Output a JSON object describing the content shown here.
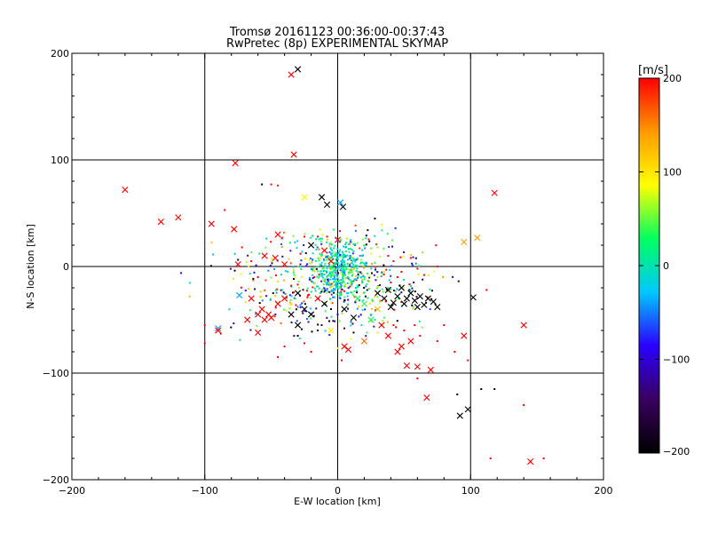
{
  "chart_data": {
    "type": "scatter",
    "title": "Tromsø 20161123 00:36:00-00:37:43",
    "subtitle": "RwPretec (8p) EXPERIMENTAL SKYMAP",
    "xlabel": "E-W location [km]",
    "ylabel": "N-S location [km]",
    "xlim": [
      -200,
      200
    ],
    "ylim": [
      -200,
      200
    ],
    "xticks": [
      -200,
      -100,
      0,
      100,
      200
    ],
    "yticks": [
      -200,
      -100,
      0,
      100,
      200
    ],
    "xtick_labels": [
      "−200",
      "−100",
      "0",
      "100",
      "200"
    ],
    "ytick_labels": [
      "−200",
      "−100",
      "0",
      "100",
      "200"
    ],
    "grid": true,
    "colorbar": {
      "label": "[m/s]",
      "range": [
        -200,
        200
      ],
      "ticks": [
        200,
        100,
        0,
        -100,
        -200
      ],
      "tick_labels": [
        "200",
        "100",
        "0",
        "−100",
        "−200"
      ],
      "colors": [
        "#000000",
        "#3a0060",
        "#2a00ff",
        "#00c8ff",
        "#00ff60",
        "#ffff00",
        "#ff9a00",
        "#ff0000"
      ]
    },
    "series": [
      {
        "name": "large crosses",
        "marker": "x",
        "points": [
          {
            "x": -30,
            "y": 185,
            "v": -200
          },
          {
            "x": -35,
            "y": 180,
            "v": 200
          },
          {
            "x": -33,
            "y": 105,
            "v": 200
          },
          {
            "x": -160,
            "y": 72,
            "v": 200
          },
          {
            "x": -133,
            "y": 42,
            "v": 200
          },
          {
            "x": -120,
            "y": 46,
            "v": 200
          },
          {
            "x": -95,
            "y": 40,
            "v": 200
          },
          {
            "x": -77,
            "y": 97,
            "v": 200
          },
          {
            "x": -25,
            "y": 65,
            "v": 90
          },
          {
            "x": -12,
            "y": 65,
            "v": -200
          },
          {
            "x": -8,
            "y": 58,
            "v": -200
          },
          {
            "x": 2,
            "y": 60,
            "v": -40
          },
          {
            "x": 4,
            "y": 56,
            "v": -200
          },
          {
            "x": 95,
            "y": 23,
            "v": 140
          },
          {
            "x": 105,
            "y": 27,
            "v": 140
          },
          {
            "x": 118,
            "y": 69,
            "v": 200
          },
          {
            "x": 102,
            "y": -29,
            "v": -200
          },
          {
            "x": 140,
            "y": -55,
            "v": 200
          },
          {
            "x": 95,
            "y": -65,
            "v": 200
          },
          {
            "x": 92,
            "y": -140,
            "v": -200
          },
          {
            "x": 98,
            "y": -134,
            "v": -200
          },
          {
            "x": 145,
            "y": -183,
            "v": 200
          },
          {
            "x": 67,
            "y": -123,
            "v": 200
          },
          {
            "x": 70,
            "y": -97,
            "v": 200
          },
          {
            "x": 60,
            "y": -94,
            "v": 200
          },
          {
            "x": 52,
            "y": -93,
            "v": 200
          },
          {
            "x": -90,
            "y": -58,
            "v": -40
          },
          {
            "x": -74,
            "y": -27,
            "v": -40
          },
          {
            "x": -75,
            "y": 2,
            "v": 200
          },
          {
            "x": -78,
            "y": 35,
            "v": 200
          },
          {
            "x": -55,
            "y": 10,
            "v": 200
          },
          {
            "x": -47,
            "y": 8,
            "v": 200
          },
          {
            "x": -40,
            "y": 2,
            "v": 200
          },
          {
            "x": -45,
            "y": 30,
            "v": 200
          },
          {
            "x": -20,
            "y": 20,
            "v": -200
          },
          {
            "x": -10,
            "y": 15,
            "v": 200
          },
          {
            "x": 0,
            "y": 25,
            "v": 200
          },
          {
            "x": -5,
            "y": 5,
            "v": 200
          },
          {
            "x": 10,
            "y": -5,
            "v": 60
          },
          {
            "x": 15,
            "y": -30,
            "v": 30
          },
          {
            "x": 20,
            "y": -35,
            "v": 40
          },
          {
            "x": 25,
            "y": -50,
            "v": 30
          },
          {
            "x": 30,
            "y": -40,
            "v": 120
          },
          {
            "x": 20,
            "y": -70,
            "v": 160
          },
          {
            "x": -15,
            "y": -30,
            "v": 200
          },
          {
            "x": -30,
            "y": -25,
            "v": -200
          },
          {
            "x": -25,
            "y": -40,
            "v": -200
          },
          {
            "x": -10,
            "y": -35,
            "v": -200
          },
          {
            "x": 5,
            "y": -40,
            "v": -200
          },
          {
            "x": 12,
            "y": -48,
            "v": -200
          },
          {
            "x": 30,
            "y": -25,
            "v": -200
          },
          {
            "x": 35,
            "y": -30,
            "v": -200
          },
          {
            "x": 38,
            "y": -22,
            "v": -200
          },
          {
            "x": 42,
            "y": -34,
            "v": -200
          },
          {
            "x": 45,
            "y": -28,
            "v": -200
          },
          {
            "x": 48,
            "y": -20,
            "v": -200
          },
          {
            "x": 50,
            "y": -35,
            "v": -200
          },
          {
            "x": 55,
            "y": -25,
            "v": -200
          },
          {
            "x": 58,
            "y": -32,
            "v": -200
          },
          {
            "x": 62,
            "y": -28,
            "v": -200
          },
          {
            "x": 65,
            "y": -36,
            "v": -200
          },
          {
            "x": 68,
            "y": -30,
            "v": -200
          },
          {
            "x": 72,
            "y": -33,
            "v": -200
          },
          {
            "x": 75,
            "y": -38,
            "v": -200
          },
          {
            "x": 40,
            "y": -38,
            "v": -200
          },
          {
            "x": 52,
            "y": -30,
            "v": -200
          },
          {
            "x": 60,
            "y": -38,
            "v": -200
          },
          {
            "x": -60,
            "y": -45,
            "v": 200
          },
          {
            "x": -55,
            "y": -50,
            "v": 200
          },
          {
            "x": -52,
            "y": -45,
            "v": 200
          },
          {
            "x": -57,
            "y": -40,
            "v": 200
          },
          {
            "x": -50,
            "y": -48,
            "v": 200
          },
          {
            "x": -65,
            "y": -30,
            "v": 200
          },
          {
            "x": -60,
            "y": -62,
            "v": 200
          },
          {
            "x": -68,
            "y": -50,
            "v": 200
          },
          {
            "x": -45,
            "y": -35,
            "v": 200
          },
          {
            "x": -40,
            "y": -30,
            "v": 200
          },
          {
            "x": -35,
            "y": -45,
            "v": -200
          },
          {
            "x": -30,
            "y": -55,
            "v": -200
          },
          {
            "x": -20,
            "y": -45,
            "v": -200
          },
          {
            "x": 38,
            "y": -65,
            "v": 200
          },
          {
            "x": 45,
            "y": -80,
            "v": 200
          },
          {
            "x": 55,
            "y": -70,
            "v": 200
          },
          {
            "x": 48,
            "y": -75,
            "v": 200
          },
          {
            "x": 33,
            "y": -55,
            "v": 200
          },
          {
            "x": -90,
            "y": -60,
            "v": 200
          },
          {
            "x": 5,
            "y": -75,
            "v": 200
          },
          {
            "x": 8,
            "y": -78,
            "v": 200
          },
          {
            "x": -5,
            "y": -60,
            "v": 100
          }
        ]
      },
      {
        "name": "small dots",
        "marker": "dot",
        "points": [
          {
            "x": -57,
            "y": 77,
            "v": -200
          },
          {
            "x": -50,
            "y": 77,
            "v": 200
          },
          {
            "x": -45,
            "y": 76,
            "v": 200
          },
          {
            "x": -85,
            "y": 53,
            "v": 200
          },
          {
            "x": 28,
            "y": 45,
            "v": -200
          },
          {
            "x": 75,
            "y": 0,
            "v": 200
          },
          {
            "x": 112,
            "y": -22,
            "v": 200
          },
          {
            "x": 88,
            "y": -80,
            "v": 200
          },
          {
            "x": 98,
            "y": -88,
            "v": 200
          },
          {
            "x": 108,
            "y": -115,
            "v": -200
          },
          {
            "x": 118,
            "y": -115,
            "v": -200
          },
          {
            "x": 90,
            "y": -120,
            "v": -200
          },
          {
            "x": 140,
            "y": -130,
            "v": 200
          },
          {
            "x": 115,
            "y": -180,
            "v": 200
          },
          {
            "x": 155,
            "y": -180,
            "v": 200
          },
          {
            "x": -100,
            "y": -55,
            "v": 200
          },
          {
            "x": -100,
            "y": -72,
            "v": 200
          },
          {
            "x": -88,
            "y": -63,
            "v": 200
          },
          {
            "x": -45,
            "y": -85,
            "v": 200
          },
          {
            "x": -40,
            "y": -75,
            "v": 200
          },
          {
            "x": -25,
            "y": -72,
            "v": 200
          },
          {
            "x": -30,
            "y": -65,
            "v": -200
          },
          {
            "x": -15,
            "y": -60,
            "v": -200
          },
          {
            "x": -35,
            "y": -18,
            "v": 200
          },
          {
            "x": 3,
            "y": -88,
            "v": 200
          },
          {
            "x": 12,
            "y": -62,
            "v": -200
          },
          {
            "x": 30,
            "y": -62,
            "v": 100
          },
          {
            "x": -20,
            "y": -80,
            "v": 200
          },
          {
            "x": 60,
            "y": -105,
            "v": 200
          },
          {
            "x": 80,
            "y": -55,
            "v": 200
          },
          {
            "x": 75,
            "y": -70,
            "v": 200
          },
          {
            "x": -72,
            "y": 18,
            "v": 200
          },
          {
            "x": -60,
            "y": -10,
            "v": 200
          },
          {
            "x": -65,
            "y": 5,
            "v": 200
          },
          {
            "x": -28,
            "y": 12,
            "v": 200
          },
          {
            "x": -25,
            "y": 28,
            "v": 200
          },
          {
            "x": -8,
            "y": 28,
            "v": 200
          },
          {
            "x": -15,
            "y": 28,
            "v": 200
          },
          {
            "x": 15,
            "y": 22,
            "v": 60
          },
          {
            "x": 20,
            "y": 20,
            "v": 40
          },
          {
            "x": 25,
            "y": 12,
            "v": 80
          },
          {
            "x": 30,
            "y": 18,
            "v": 60
          },
          {
            "x": 38,
            "y": 10,
            "v": 200
          },
          {
            "x": 42,
            "y": 5,
            "v": 200
          },
          {
            "x": 55,
            "y": 8,
            "v": 200
          },
          {
            "x": 48,
            "y": -5,
            "v": 200
          },
          {
            "x": 60,
            "y": -2,
            "v": 200
          },
          {
            "x": 65,
            "y": -8,
            "v": 200
          },
          {
            "x": 35,
            "y": -5,
            "v": 100
          },
          {
            "x": 30,
            "y": -10,
            "v": 60
          },
          {
            "x": 20,
            "y": -12,
            "v": 30
          },
          {
            "x": 15,
            "y": -18,
            "v": 0
          },
          {
            "x": 8,
            "y": -25,
            "v": -20
          },
          {
            "x": 2,
            "y": -30,
            "v": -60
          },
          {
            "x": -2,
            "y": -22,
            "v": -40
          },
          {
            "x": -8,
            "y": -15,
            "v": -20
          },
          {
            "x": -12,
            "y": -8,
            "v": 20
          },
          {
            "x": -18,
            "y": -2,
            "v": 60
          },
          {
            "x": 25,
            "y": -45,
            "v": 20
          },
          {
            "x": 18,
            "y": -55,
            "v": 0
          },
          {
            "x": 22,
            "y": -62,
            "v": 40
          },
          {
            "x": 10,
            "y": -52,
            "v": -60
          },
          {
            "x": 0,
            "y": -45,
            "v": -120
          },
          {
            "x": -5,
            "y": -40,
            "v": -200
          },
          {
            "x": 5,
            "y": -58,
            "v": -150
          },
          {
            "x": -22,
            "y": -52,
            "v": -100
          },
          {
            "x": -12,
            "y": -55,
            "v": -150
          },
          {
            "x": 28,
            "y": -50,
            "v": 10
          },
          {
            "x": 35,
            "y": -48,
            "v": 40
          },
          {
            "x": 42,
            "y": -55,
            "v": 200
          },
          {
            "x": 50,
            "y": -60,
            "v": 200
          },
          {
            "x": 58,
            "y": -55,
            "v": 200
          },
          {
            "x": 62,
            "y": -65,
            "v": 200
          },
          {
            "x": 40,
            "y": -15,
            "v": 200
          },
          {
            "x": 45,
            "y": -10,
            "v": 200
          },
          {
            "x": 32,
            "y": -32,
            "v": 150
          },
          {
            "x": 28,
            "y": -28,
            "v": 120
          },
          {
            "x": 24,
            "y": -35,
            "v": 80
          }
        ]
      }
    ],
    "core_cluster": {
      "count": 380,
      "seed": 20161123,
      "cx": 0,
      "cy": 0,
      "sx": 10,
      "sy": 12,
      "v_mean": 0,
      "v_sd": 40
    },
    "diffuse_cluster": {
      "count": 460,
      "seed": 37,
      "cx": 0,
      "cy": -15,
      "sx": 38,
      "sy": 22,
      "v_mean": 0,
      "v_sd": 130
    }
  }
}
